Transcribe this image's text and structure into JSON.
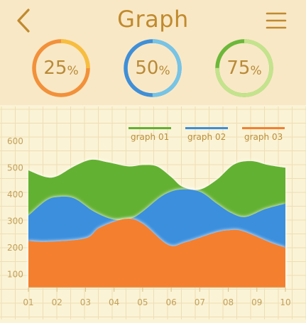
{
  "header": {
    "title": "Graph",
    "back_icon": "chevron-left-icon",
    "menu_icon": "hamburger-menu-icon"
  },
  "progress_rings": [
    {
      "value": "25",
      "unit": "%",
      "fraction": 0.25,
      "track": "#f2913a",
      "fill": "#f7be3e"
    },
    {
      "value": "50",
      "unit": "%",
      "fraction": 0.5,
      "track": "#3f8fd8",
      "fill": "#76c4e6"
    },
    {
      "value": "75",
      "unit": "%",
      "fraction": 0.75,
      "track": "#6cb83a",
      "fill": "#c3e48c"
    }
  ],
  "chart_data": {
    "type": "area",
    "categories": [
      "01",
      "02",
      "03",
      "04",
      "05",
      "06",
      "07",
      "08",
      "09",
      "10"
    ],
    "x": [
      1,
      2,
      3,
      4,
      5,
      6,
      7,
      8,
      9,
      10
    ],
    "y_ticks": [
      "100",
      "200",
      "300",
      "400",
      "500",
      "600"
    ],
    "ylim": [
      50,
      650
    ],
    "xlim": [
      1,
      10
    ],
    "grid": true,
    "legend_position": "top-right",
    "series": [
      {
        "name": "graph 03",
        "color": "#f47f2e",
        "points": [
          [
            1,
            225
          ],
          [
            1.7,
            222
          ],
          [
            3,
            235
          ],
          [
            3.5,
            275
          ],
          [
            4.4,
            308
          ],
          [
            5,
            290
          ],
          [
            5.9,
            210
          ],
          [
            6.5,
            220
          ],
          [
            7.5,
            255
          ],
          [
            8,
            265
          ],
          [
            8.5,
            262
          ],
          [
            9.5,
            218
          ],
          [
            10,
            200
          ]
        ]
      },
      {
        "name": "graph 02",
        "color": "#3b8fdd",
        "points": [
          [
            1,
            320
          ],
          [
            1.6,
            375
          ],
          [
            2,
            390
          ],
          [
            2.6,
            385
          ],
          [
            3.3,
            335
          ],
          [
            4,
            305
          ],
          [
            4.6,
            310
          ],
          [
            5,
            335
          ],
          [
            5.7,
            395
          ],
          [
            6.3,
            418
          ],
          [
            7,
            410
          ],
          [
            7.6,
            365
          ],
          [
            8.1,
            330
          ],
          [
            8.6,
            315
          ],
          [
            9.3,
            345
          ],
          [
            10,
            365
          ]
        ]
      },
      {
        "name": "graph 01",
        "color": "#63b131",
        "points": [
          [
            1,
            490
          ],
          [
            1.6,
            465
          ],
          [
            2,
            468
          ],
          [
            2.6,
            505
          ],
          [
            3.2,
            530
          ],
          [
            3.8,
            520
          ],
          [
            4.5,
            505
          ],
          [
            5,
            510
          ],
          [
            5.5,
            505
          ],
          [
            6,
            465
          ],
          [
            6.4,
            428
          ],
          [
            7,
            418
          ],
          [
            7.6,
            455
          ],
          [
            8.2,
            512
          ],
          [
            8.8,
            525
          ],
          [
            9.4,
            510
          ],
          [
            10,
            500
          ]
        ]
      }
    ]
  }
}
